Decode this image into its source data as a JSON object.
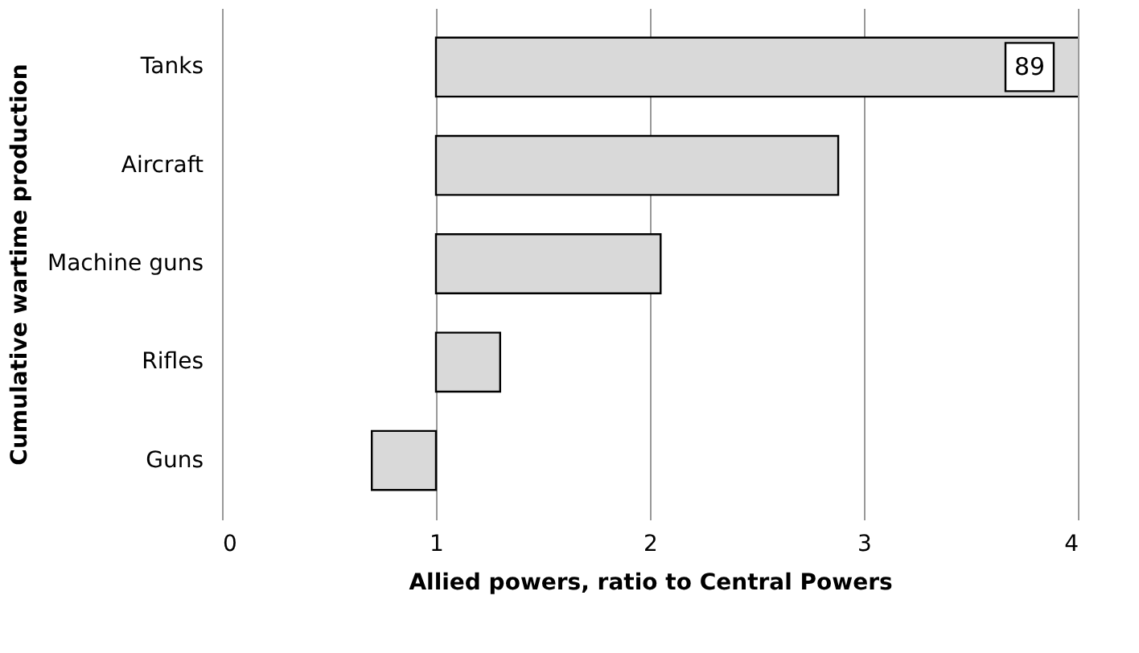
{
  "chart_data": {
    "type": "bar",
    "orientation": "horizontal",
    "categories": [
      "Tanks",
      "Aircraft",
      "Machine guns",
      "Rifles",
      "Guns"
    ],
    "values": [
      88,
      1.88,
      1.05,
      0.3,
      -0.3
    ],
    "base": [
      1,
      1,
      1,
      1,
      1
    ],
    "value_labels": [
      "89",
      null,
      null,
      null,
      null
    ],
    "color": "#d9d9d9",
    "xlim": [
      0,
      4
    ],
    "xticks": [
      0,
      1,
      2,
      3,
      4
    ],
    "grid": "x",
    "xlabel": "Allied powers, ratio to Central Powers",
    "ylabel": "Cumulative wartime production"
  }
}
